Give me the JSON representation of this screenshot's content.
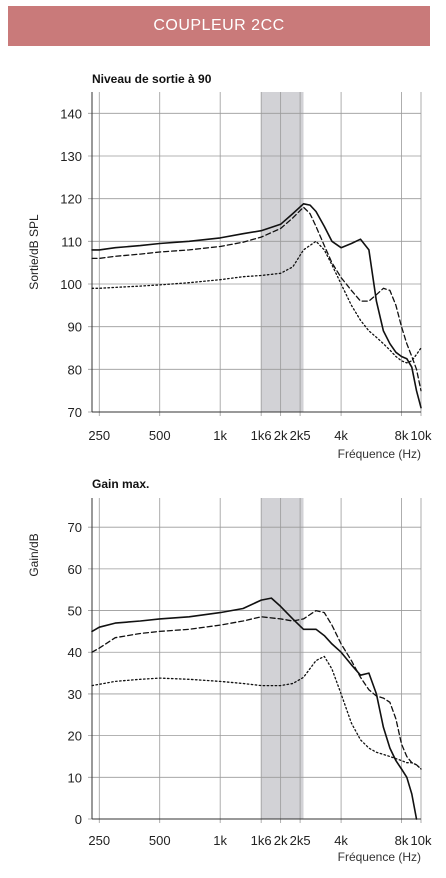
{
  "header": {
    "title": "COUPLEUR 2CC"
  },
  "chart_data": [
    {
      "type": "line",
      "title": "Niveau de sortie à 90",
      "ylabel": "Sortie/dB SPL",
      "xlabel": "Fréquence (Hz)",
      "xscale": "log",
      "xlim": [
        230,
        10000
      ],
      "ylim": [
        70,
        145
      ],
      "yticks": [
        70,
        80,
        90,
        100,
        110,
        120,
        130,
        140
      ],
      "xticks": [
        250,
        500,
        1000,
        1600,
        2000,
        2500,
        4000,
        8000,
        10000
      ],
      "xtick_labels": [
        "250",
        "500",
        "1k",
        "1k6",
        "2k",
        "2k5",
        "4k",
        "8k",
        "10k"
      ],
      "shaded_band": [
        1600,
        2600
      ],
      "grid": true,
      "series": [
        {
          "style": "solid",
          "x": [
            230,
            250,
            300,
            400,
            500,
            700,
            1000,
            1300,
            1600,
            2000,
            2300,
            2600,
            2800,
            3000,
            3300,
            3600,
            4000,
            4500,
            5000,
            5500,
            6000,
            6500,
            7000,
            7500,
            8000,
            8500,
            9000,
            9500,
            10000
          ],
          "y": [
            108,
            108,
            108.5,
            109,
            109.5,
            110,
            110.8,
            111.8,
            112.5,
            114,
            116.5,
            118.8,
            118.5,
            117,
            113.5,
            110,
            108.5,
            109.5,
            110.5,
            108,
            96,
            89,
            86,
            84,
            83,
            82.5,
            80.5,
            75,
            71
          ]
        },
        {
          "style": "dashed",
          "x": [
            230,
            250,
            300,
            400,
            500,
            700,
            1000,
            1300,
            1600,
            2000,
            2300,
            2600,
            2800,
            3000,
            3300,
            3600,
            4000,
            4500,
            5000,
            5500,
            6000,
            6500,
            7000,
            7500,
            8000,
            8500,
            9000,
            9500,
            10000
          ],
          "y": [
            106,
            106,
            106.5,
            107,
            107.5,
            108,
            108.8,
            109.8,
            111,
            113,
            115.5,
            118,
            116.5,
            113.5,
            109,
            105,
            101.5,
            98.5,
            96,
            96,
            97.5,
            99,
            98.5,
            95,
            90,
            86,
            83,
            80,
            75
          ]
        },
        {
          "style": "dotted",
          "x": [
            230,
            250,
            300,
            400,
            500,
            700,
            1000,
            1300,
            1600,
            2000,
            2300,
            2600,
            3000,
            3300,
            3600,
            4000,
            4500,
            5000,
            5500,
            6000,
            6500,
            7000,
            7500,
            8000,
            8500,
            9000,
            9500,
            10000
          ],
          "y": [
            99,
            99,
            99.2,
            99.5,
            99.8,
            100.3,
            101,
            101.7,
            102,
            102.5,
            104,
            108,
            110,
            108,
            104.5,
            100,
            95,
            91.5,
            89,
            87.5,
            86,
            84.5,
            83,
            82,
            81.5,
            82,
            83.5,
            85
          ]
        }
      ]
    },
    {
      "type": "line",
      "title": "Gain max.",
      "ylabel": "Gain/dB",
      "xlabel": "Fréquence (Hz)",
      "xscale": "log",
      "xlim": [
        230,
        10000
      ],
      "ylim": [
        0,
        77
      ],
      "yticks": [
        0,
        10,
        20,
        30,
        40,
        50,
        60,
        70
      ],
      "xticks": [
        250,
        500,
        1000,
        1600,
        2000,
        2500,
        4000,
        8000,
        10000
      ],
      "xtick_labels": [
        "250",
        "500",
        "1k",
        "1k6",
        "2k",
        "2k5",
        "4k",
        "8k",
        "10k"
      ],
      "shaded_band": [
        1600,
        2600
      ],
      "grid": true,
      "series": [
        {
          "style": "solid",
          "x": [
            230,
            250,
            300,
            400,
            500,
            700,
            1000,
            1300,
            1600,
            1800,
            2000,
            2300,
            2600,
            3000,
            3300,
            3600,
            4000,
            4500,
            5000,
            5500,
            6000,
            6500,
            7000,
            7500,
            8000,
            8500,
            9000,
            9500
          ],
          "y": [
            45,
            46,
            47,
            47.5,
            48,
            48.5,
            49.5,
            50.5,
            52.5,
            53,
            51,
            48,
            45.5,
            45.5,
            44,
            42,
            40,
            37,
            34.5,
            35,
            30,
            22,
            17,
            14,
            12,
            10,
            6,
            0
          ]
        },
        {
          "style": "dashed",
          "x": [
            230,
            250,
            300,
            400,
            500,
            700,
            1000,
            1300,
            1600,
            2000,
            2300,
            2600,
            3000,
            3300,
            3600,
            4000,
            4500,
            5000,
            5500,
            6000,
            6500,
            7000,
            7500,
            8000,
            8500,
            9000,
            9500,
            10000
          ],
          "y": [
            40,
            41,
            43.5,
            44.5,
            45,
            45.5,
            46.5,
            47.5,
            48.5,
            48,
            47.5,
            48,
            50,
            49.5,
            46.5,
            42,
            38,
            34,
            31,
            29.5,
            29,
            28,
            24,
            18,
            15,
            13.5,
            13,
            12
          ]
        },
        {
          "style": "dotted",
          "x": [
            230,
            250,
            300,
            400,
            500,
            700,
            1000,
            1300,
            1600,
            2000,
            2300,
            2600,
            3000,
            3300,
            3600,
            4000,
            4500,
            5000,
            5500,
            6000,
            6500,
            7000,
            7500,
            8000,
            8500,
            9000,
            9500,
            10000
          ],
          "y": [
            32,
            32.3,
            33,
            33.5,
            33.8,
            33.5,
            33,
            32.5,
            32,
            32,
            32.5,
            34,
            38,
            39,
            36,
            30,
            23,
            19,
            17,
            16,
            15.5,
            15,
            14.5,
            14,
            13.5,
            13.5,
            13,
            12
          ]
        }
      ]
    }
  ]
}
